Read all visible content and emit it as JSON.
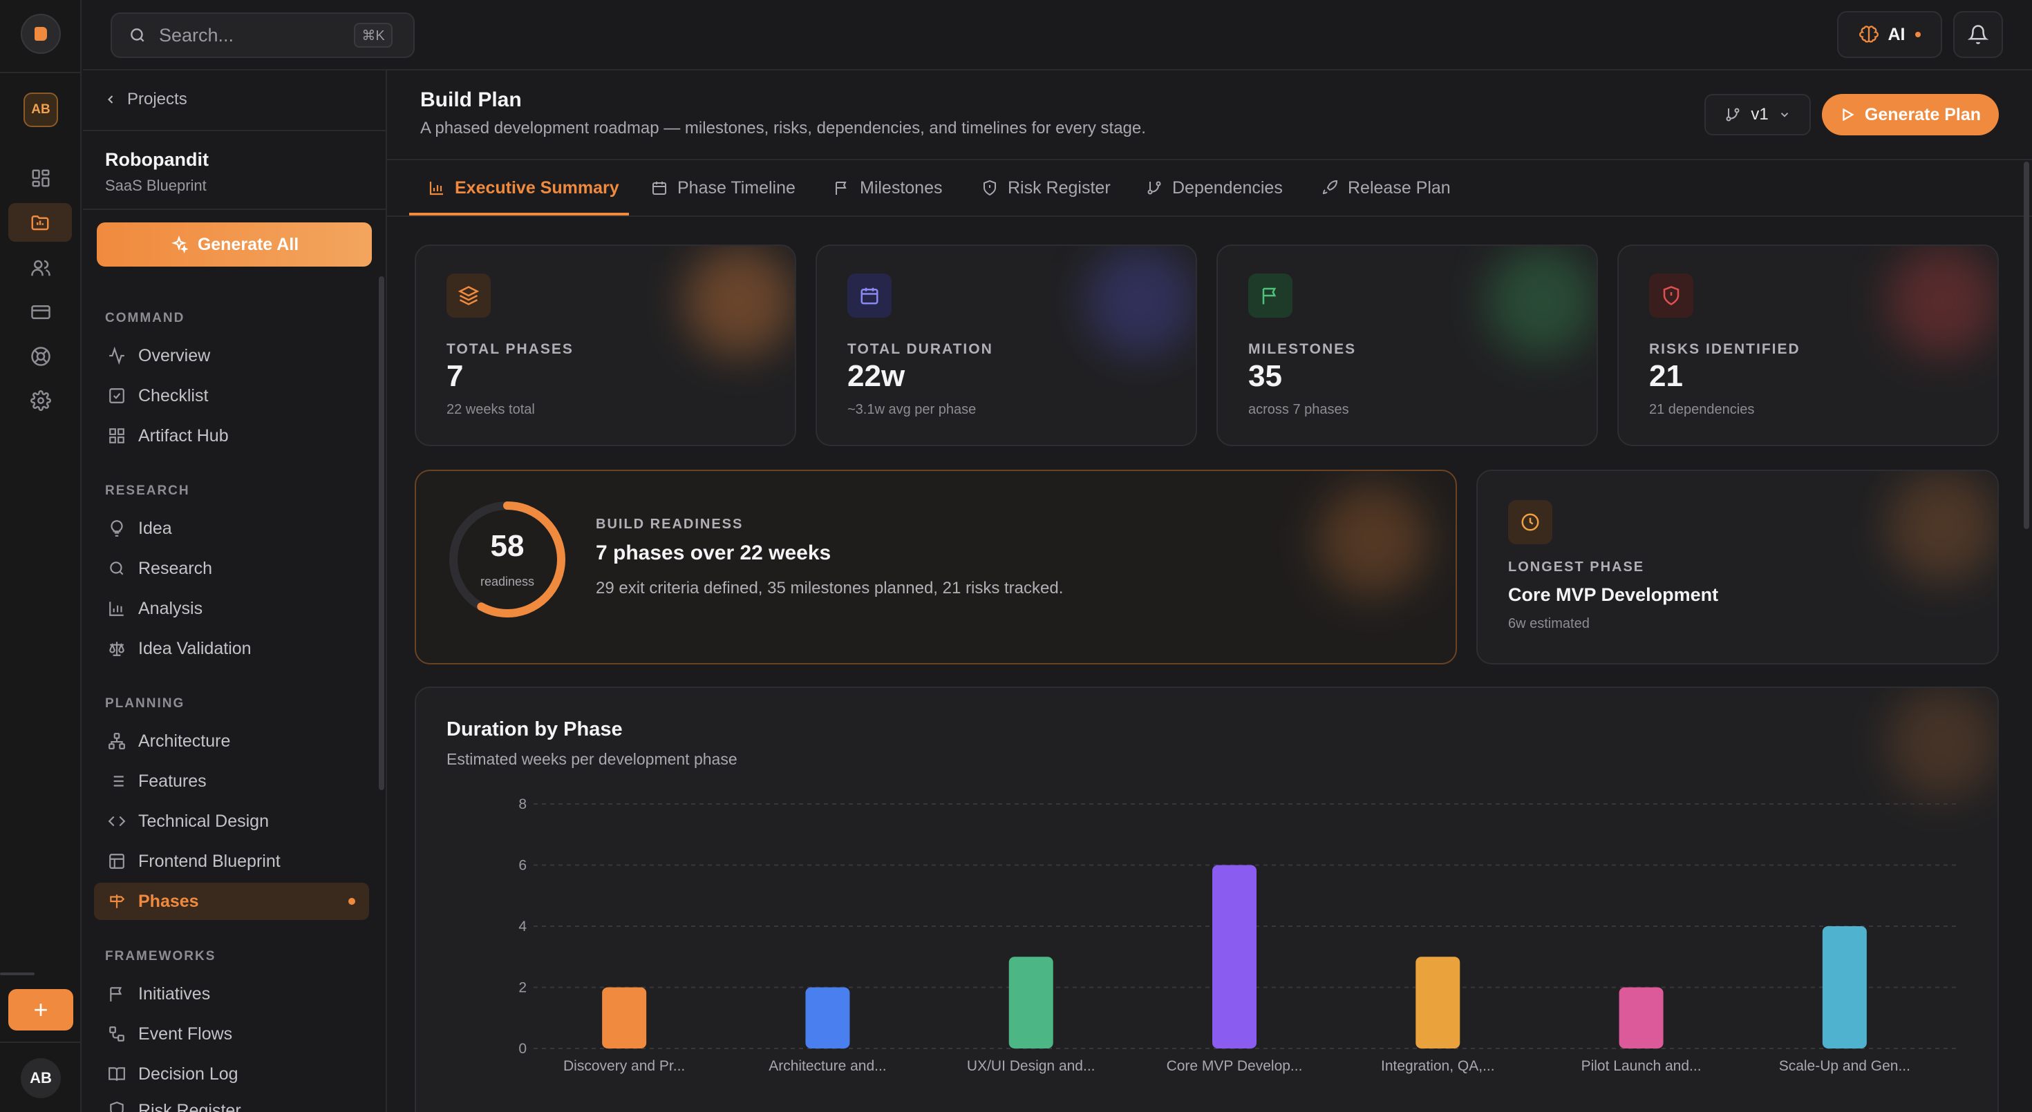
{
  "topbar": {
    "search_placeholder": "Search...",
    "search_shortcut": "⌘K",
    "ai_label": "AI"
  },
  "rail": {
    "workspace_initials": "AB",
    "user_initials": "AB"
  },
  "sidebar": {
    "back_label": "Projects",
    "project_name": "Robopandit",
    "project_type": "SaaS Blueprint",
    "generate_all_label": "Generate All",
    "sections": {
      "command": "COMMAND",
      "research": "RESEARCH",
      "planning": "PLANNING",
      "frameworks": "FRAMEWORKS"
    },
    "command_items": [
      "Overview",
      "Checklist",
      "Artifact Hub"
    ],
    "research_items": [
      "Idea",
      "Research",
      "Analysis",
      "Idea Validation"
    ],
    "planning_items": [
      "Architecture",
      "Features",
      "Technical Design",
      "Frontend Blueprint",
      "Phases"
    ],
    "framework_items": [
      "Initiatives",
      "Event Flows",
      "Decision Log",
      "Risk Register"
    ]
  },
  "header": {
    "title": "Build Plan",
    "subtitle": "A phased development roadmap — milestones, risks, dependencies, and timelines for every stage.",
    "version_label": "v1",
    "generate_plan_label": "Generate Plan"
  },
  "tabs": [
    "Executive Summary",
    "Phase Timeline",
    "Milestones",
    "Risk Register",
    "Dependencies",
    "Release Plan"
  ],
  "stats": [
    {
      "label": "TOTAL PHASES",
      "value": "7",
      "sub": "22 weeks total",
      "color": "#f08a3e"
    },
    {
      "label": "TOTAL DURATION",
      "value": "22w",
      "sub": "~3.1w avg per phase",
      "color": "#7c7cf0"
    },
    {
      "label": "MILESTONES",
      "value": "35",
      "sub": "across 7 phases",
      "color": "#4cc27a"
    },
    {
      "label": "RISKS IDENTIFIED",
      "value": "21",
      "sub": "21 dependencies",
      "color": "#e05050"
    }
  ],
  "readiness": {
    "score": "58",
    "score_value": 58,
    "score_caption": "readiness",
    "label": "BUILD READINESS",
    "headline": "7 phases over 22 weeks",
    "detail": "29 exit criteria defined, 35 milestones planned, 21 risks tracked."
  },
  "longest_phase": {
    "label": "LONGEST PHASE",
    "name": "Core MVP Development",
    "estimate": "6w estimated"
  },
  "chart_data": {
    "type": "bar",
    "title": "Duration by Phase",
    "subtitle": "Estimated weeks per development phase",
    "categories": [
      "Discovery and Pr...",
      "Architecture and...",
      "UX/UI Design and...",
      "Core MVP Develop...",
      "Integration, QA,...",
      "Pilot Launch and...",
      "Scale-Up and Gen..."
    ],
    "values": [
      2,
      2,
      3,
      6,
      3,
      2,
      4
    ],
    "colors": [
      "#f08a3e",
      "#4a7ff0",
      "#4cb784",
      "#8a5cf0",
      "#eaa23c",
      "#dd5a9a",
      "#4fb3cf"
    ],
    "yticks": [
      0,
      2,
      4,
      6,
      8
    ],
    "ylim": [
      0,
      8
    ],
    "grid": true
  },
  "colors": {
    "accent": "#f08a3e"
  }
}
